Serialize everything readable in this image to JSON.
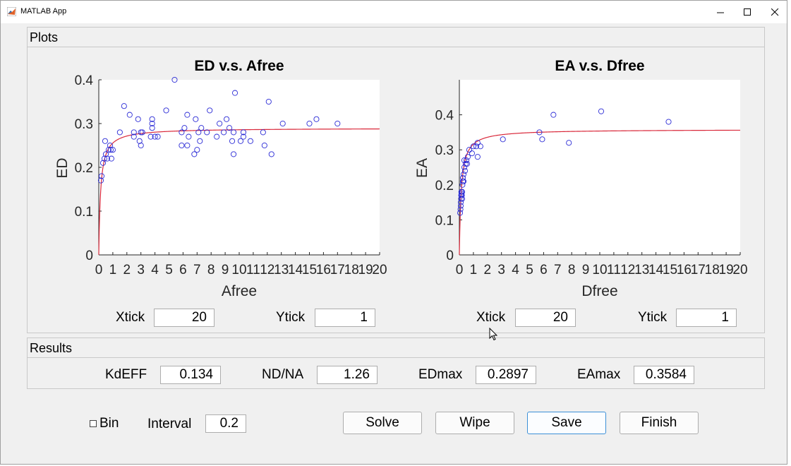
{
  "window": {
    "title": "MATLAB App"
  },
  "plots_panel": {
    "title": "Plots"
  },
  "results_panel": {
    "title": "Results"
  },
  "plots": [
    {
      "title": "ED v.s. Afree",
      "xlabel": "Afree",
      "ylabel": "ED",
      "xlim": [
        0,
        20
      ],
      "ylim": [
        0,
        0.4
      ],
      "xticks": [
        0,
        1,
        2,
        3,
        4,
        5,
        6,
        7,
        8,
        9,
        10,
        11,
        12,
        13,
        14,
        15,
        16,
        17,
        18,
        19,
        20
      ],
      "xtick_labels": [
        "0",
        "1",
        "2",
        "3",
        "4",
        "5",
        "6",
        "7",
        "8",
        "9",
        "10",
        "11",
        "12",
        "13",
        "14",
        "15",
        "16",
        "17",
        "18",
        "19",
        "20"
      ],
      "yticks": [
        0,
        0.1,
        0.2,
        0.3,
        0.4
      ],
      "ytick_labels": [
        "0",
        "0.1",
        "0.2",
        "0.3",
        "0.4"
      ],
      "fit_max": 0.2897,
      "fit_k": 0.134,
      "points": [
        [
          0.15,
          0.17
        ],
        [
          0.2,
          0.18
        ],
        [
          0.3,
          0.21
        ],
        [
          0.4,
          0.22
        ],
        [
          0.5,
          0.23
        ],
        [
          0.45,
          0.26
        ],
        [
          0.6,
          0.22
        ],
        [
          0.7,
          0.24
        ],
        [
          0.8,
          0.25
        ],
        [
          0.85,
          0.24
        ],
        [
          0.9,
          0.22
        ],
        [
          1.0,
          0.24
        ],
        [
          1.5,
          0.28
        ],
        [
          1.8,
          0.34
        ],
        [
          2.2,
          0.32
        ],
        [
          2.5,
          0.28
        ],
        [
          2.5,
          0.27
        ],
        [
          2.8,
          0.31
        ],
        [
          2.9,
          0.26
        ],
        [
          3.0,
          0.25
        ],
        [
          3.0,
          0.28
        ],
        [
          3.1,
          0.28
        ],
        [
          3.7,
          0.27
        ],
        [
          3.8,
          0.29
        ],
        [
          3.8,
          0.3
        ],
        [
          3.8,
          0.31
        ],
        [
          4.0,
          0.27
        ],
        [
          4.2,
          0.27
        ],
        [
          4.8,
          0.33
        ],
        [
          5.4,
          0.4
        ],
        [
          5.9,
          0.28
        ],
        [
          5.9,
          0.25
        ],
        [
          6.1,
          0.29
        ],
        [
          6.3,
          0.32
        ],
        [
          6.3,
          0.25
        ],
        [
          6.4,
          0.27
        ],
        [
          6.8,
          0.23
        ],
        [
          6.9,
          0.31
        ],
        [
          7.0,
          0.24
        ],
        [
          7.1,
          0.28
        ],
        [
          7.2,
          0.26
        ],
        [
          7.3,
          0.29
        ],
        [
          7.7,
          0.28
        ],
        [
          7.9,
          0.33
        ],
        [
          8.4,
          0.27
        ],
        [
          8.6,
          0.3
        ],
        [
          8.9,
          0.28
        ],
        [
          9.1,
          0.31
        ],
        [
          9.3,
          0.29
        ],
        [
          9.5,
          0.26
        ],
        [
          9.6,
          0.23
        ],
        [
          9.6,
          0.28
        ],
        [
          9.7,
          0.37
        ],
        [
          10.1,
          0.26
        ],
        [
          10.3,
          0.28
        ],
        [
          10.3,
          0.27
        ],
        [
          10.8,
          0.26
        ],
        [
          11.7,
          0.28
        ],
        [
          11.8,
          0.25
        ],
        [
          12.1,
          0.35
        ],
        [
          12.3,
          0.23
        ],
        [
          13.1,
          0.3
        ],
        [
          15.0,
          0.3
        ],
        [
          15.5,
          0.31
        ],
        [
          17.0,
          0.3
        ]
      ],
      "xtick_field": {
        "label": "Xtick",
        "value": "20"
      },
      "ytick_field": {
        "label": "Ytick",
        "value": "1"
      }
    },
    {
      "title": "EA v.s. Dfree",
      "xlabel": "Dfree",
      "ylabel": "EA",
      "xlim": [
        0,
        20
      ],
      "ylim": [
        0,
        0.5
      ],
      "xticks": [
        0,
        1,
        2,
        3,
        4,
        5,
        6,
        7,
        8,
        9,
        10,
        11,
        12,
        13,
        14,
        15,
        16,
        17,
        18,
        19,
        20
      ],
      "xtick_labels": [
        "0",
        "1",
        "2",
        "3",
        "4",
        "5",
        "6",
        "7",
        "8",
        "9",
        "10",
        "11",
        "12",
        "13",
        "14",
        "15",
        "16",
        "17",
        "18",
        "19",
        "20"
      ],
      "yticks": [
        0,
        0.1,
        0.2,
        0.3,
        0.4
      ],
      "ytick_labels": [
        "0",
        "0.1",
        "0.2",
        "0.3",
        "0.4"
      ],
      "fit_max": 0.3584,
      "fit_k": 0.134,
      "points": [
        [
          0.05,
          0.12
        ],
        [
          0.08,
          0.13
        ],
        [
          0.1,
          0.14
        ],
        [
          0.1,
          0.15
        ],
        [
          0.12,
          0.16
        ],
        [
          0.13,
          0.17
        ],
        [
          0.14,
          0.18
        ],
        [
          0.15,
          0.175
        ],
        [
          0.18,
          0.17
        ],
        [
          0.2,
          0.18
        ],
        [
          0.2,
          0.16
        ],
        [
          0.22,
          0.2
        ],
        [
          0.25,
          0.21
        ],
        [
          0.25,
          0.22
        ],
        [
          0.3,
          0.21
        ],
        [
          0.3,
          0.23
        ],
        [
          0.35,
          0.25
        ],
        [
          0.35,
          0.27
        ],
        [
          0.4,
          0.24
        ],
        [
          0.45,
          0.26
        ],
        [
          0.5,
          0.27
        ],
        [
          0.55,
          0.26
        ],
        [
          0.6,
          0.28
        ],
        [
          0.7,
          0.3
        ],
        [
          0.9,
          0.29
        ],
        [
          1.0,
          0.31
        ],
        [
          1.2,
          0.31
        ],
        [
          1.3,
          0.32
        ],
        [
          1.3,
          0.28
        ],
        [
          1.5,
          0.31
        ],
        [
          3.1,
          0.33
        ],
        [
          5.7,
          0.35
        ],
        [
          5.9,
          0.33
        ],
        [
          6.7,
          0.4
        ],
        [
          7.8,
          0.32
        ],
        [
          10.1,
          0.41
        ],
        [
          14.9,
          0.38
        ]
      ],
      "xtick_field": {
        "label": "Xtick",
        "value": "20"
      },
      "ytick_field": {
        "label": "Ytick",
        "value": "1"
      }
    }
  ],
  "results": {
    "kdeff": {
      "label": "KdEFF",
      "value": "0.134"
    },
    "nd_na": {
      "label": "ND/NA",
      "value": "1.26"
    },
    "edmax": {
      "label": "EDmax",
      "value": "0.2897"
    },
    "eamax": {
      "label": "EAmax",
      "value": "0.3584"
    }
  },
  "controls": {
    "bin_label": "Bin",
    "interval_label": "Interval",
    "interval_value": "0.2",
    "solve_label": "Solve",
    "wipe_label": "Wipe",
    "save_label": "Save",
    "finish_label": "Finish"
  },
  "colors": {
    "marker": "#2b2bd6",
    "fit_line": "#d9283a",
    "focus_border": "#3c8fd7"
  }
}
